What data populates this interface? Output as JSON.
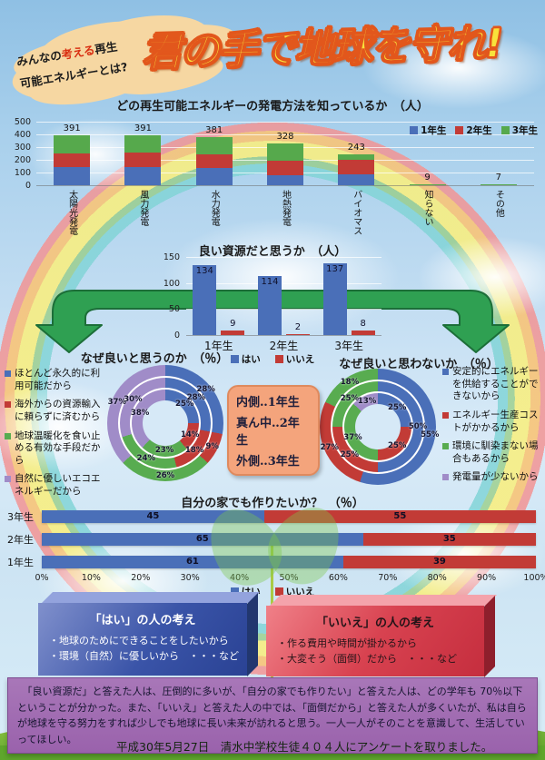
{
  "header": {
    "bubble_pre": "みんなの",
    "bubble_em": "考える",
    "bubble_post": "再生",
    "bubble_line2": "可能エネルギーとは?",
    "title": "君の手で地球を守れ!"
  },
  "colors": {
    "grade1_blue": "#4a6fb8",
    "grade2_red": "#c23b36",
    "grade3_green": "#56a94c",
    "purple": "#a08cc8",
    "title_yellow": "#f8e23b",
    "title_outline": "#e2571c",
    "note_bg": "#f4a47c",
    "conclusion_bg": "#9a62ac"
  },
  "chart_data": [
    {
      "id": "knowledge",
      "type": "bar",
      "stacked": true,
      "title": "どの再生可能エネルギーの発電方法を知っているか　（人）",
      "categories": [
        "太陽光発電",
        "風力発電",
        "水力発電",
        "地熱発電",
        "バイオマス",
        "知らない",
        "その他"
      ],
      "totals": [
        391,
        391,
        381,
        328,
        243,
        9,
        7
      ],
      "series": [
        {
          "name": "1年生",
          "color": "#4a6fb8",
          "values": [
            140,
            145,
            135,
            80,
            87,
            0,
            0
          ]
        },
        {
          "name": "2年生",
          "color": "#c23b36",
          "values": [
            110,
            110,
            105,
            115,
            111,
            0,
            0
          ]
        },
        {
          "name": "3年生",
          "color": "#56a94c",
          "values": [
            141,
            136,
            141,
            133,
            45,
            9,
            7
          ]
        }
      ],
      "ylim": [
        0,
        500
      ],
      "yticks": [
        500,
        400,
        300,
        200,
        100,
        0
      ],
      "legend_position": "top-right",
      "grid": true
    },
    {
      "id": "good_resource",
      "type": "bar",
      "stacked": false,
      "title": "良い資源だと思うか　（人）",
      "categories": [
        "1年生",
        "2年生",
        "3年生"
      ],
      "series": [
        {
          "name": "はい",
          "color": "#4a6fb8",
          "values": [
            134,
            114,
            137
          ]
        },
        {
          "name": "いいえ",
          "color": "#c23b36",
          "values": [
            9,
            2,
            8
          ]
        }
      ],
      "ylim": [
        0,
        150
      ],
      "yticks": [
        150,
        100,
        50,
        0
      ],
      "legend_position": "bottom",
      "grid": true
    },
    {
      "id": "why_good",
      "type": "pie",
      "subtype": "triple-donut",
      "title": "なぜ良いと思うのか　（％）",
      "colors": [
        "#4a6fb8",
        "#c23b36",
        "#58ac50",
        "#a08cc8"
      ],
      "legend": [
        "ほとんど永久的に利用可能だから",
        "海外からの資源輸入に頼らずに済むから",
        "地球温暖化を食い止める有効な手段だから",
        "自然に優しいエコエネルギーだから"
      ],
      "rings": [
        {
          "name": "1年生（内側）",
          "values": [
            25,
            14,
            23,
            38
          ]
        },
        {
          "name": "2年生（真ん中）",
          "values": [
            28,
            18,
            24,
            30
          ]
        },
        {
          "name": "3年生（外側）",
          "values": [
            28,
            9,
            26,
            37
          ]
        }
      ]
    },
    {
      "id": "why_not_good",
      "type": "pie",
      "subtype": "triple-donut",
      "title": "なぜ良いと思わないか　（％）",
      "colors": [
        "#4a6fb8",
        "#c23b36",
        "#58ac50",
        "#a08cc8"
      ],
      "legend": [
        "安定的にエネルギーを供給することができないから",
        "エネルギー生産コストがかかるから",
        "環境に馴染まない場合もあるから",
        "発電量が少ないから"
      ],
      "rings": [
        {
          "name": "1年生（内側）",
          "values": [
            25,
            25,
            37,
            13
          ]
        },
        {
          "name": "2年生（真ん中）",
          "values": [
            50,
            25,
            25,
            0
          ]
        },
        {
          "name": "3年生（外側）",
          "values": [
            55,
            27,
            18,
            0
          ]
        }
      ]
    },
    {
      "id": "make_at_home",
      "type": "bar",
      "stacked": true,
      "orientation": "horizontal",
      "title": "自分の家でも作りたいか？　（％）",
      "categories": [
        "3年生",
        "2年生",
        "1年生"
      ],
      "series": [
        {
          "name": "はい",
          "color": "#4a6fb8",
          "values": [
            45,
            65,
            61
          ]
        },
        {
          "name": "いいえ",
          "color": "#c23b36",
          "values": [
            55,
            35,
            39
          ]
        }
      ],
      "xticks": [
        "0%",
        "10%",
        "20%",
        "30%",
        "40%",
        "50%",
        "60%",
        "70%",
        "80%",
        "90%",
        "100%"
      ],
      "xlim": [
        0,
        100
      ],
      "legend_position": "bottom"
    }
  ],
  "center_note": {
    "lines": [
      "内側‥1年生",
      "真ん中‥2年生",
      "外側‥3年生"
    ]
  },
  "yes_box": {
    "title": "「はい」の人の考え",
    "items": [
      "・地球のためにできることをしたいから",
      "・環境（自然）に優しいから　・・・など"
    ]
  },
  "no_box": {
    "title": "「いいえ」の人の考え",
    "items": [
      "・作る費用や時間が掛かるから",
      "・大変そう（面倒）だから　・・・など"
    ]
  },
  "conclusion": "　「良い資源だ」と答えた人は、圧倒的に多いが、「自分の家でも作りたい」と答えた人は、どの学年も 70％以下ということが分かった。また、「いいえ」と答えた人の中では、「面倒だから」と答えた人が多くいたが、私は自らが地球を守る努力をすれば少しでも地球に長い未来が訪れると思う。一人一人がそのことを意識して、生活していってほしい。",
  "footer": "平成30年5月27日　清水中学校生徒４０４人にアンケートを取りました。"
}
